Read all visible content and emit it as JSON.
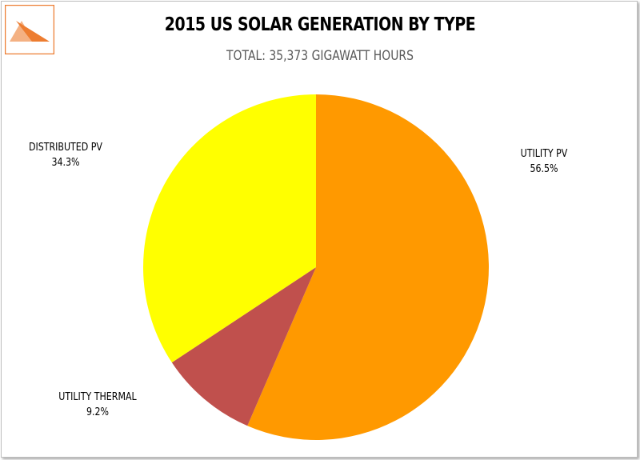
{
  "chart_data": {
    "type": "pie",
    "title": "2015 US SOLAR GENERATION BY TYPE",
    "subtitle": "TOTAL: 35,373 GIGAWATT HOURS",
    "categories": [
      "UTILITY PV",
      "UTILITY THERMAL",
      "DISTRIBUTED PV"
    ],
    "values": [
      56.5,
      9.2,
      34.3
    ],
    "value_labels": [
      "56.5%",
      "9.2%",
      "34.3%"
    ],
    "colors": [
      "#ff9900",
      "#c0504d",
      "#ffff00"
    ],
    "start_angle": "12 o'clock",
    "direction": "clockwise",
    "legend": "none"
  },
  "logo": {
    "icon": "triangle-logo-icon",
    "colors": [
      "#ed7d31",
      "#f4b183"
    ]
  }
}
